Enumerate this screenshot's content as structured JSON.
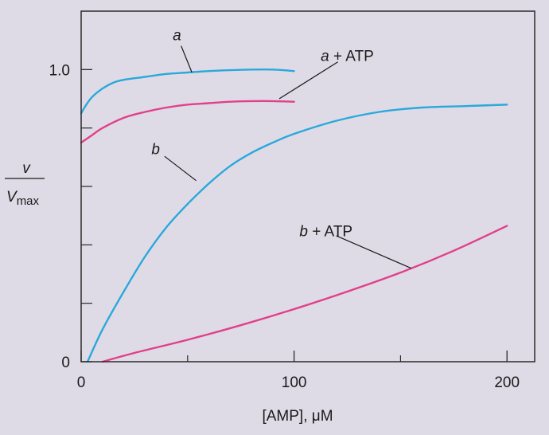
{
  "chart_data": {
    "type": "line",
    "title": "",
    "xlabel": "[AMP], μM",
    "ylabel": {
      "numerator": "v",
      "denominator": "V",
      "denominator_sub": "max"
    },
    "xlim": [
      0,
      213
    ],
    "ylim": [
      0,
      1.2
    ],
    "x_ticks": [
      0,
      100,
      200
    ],
    "x_minor_ticks": [
      50,
      150
    ],
    "y_ticks": [
      0,
      1.0
    ],
    "y_tick_labels": [
      "0",
      "1.0"
    ],
    "y_minor_ticks": [
      0.2,
      0.4,
      0.6,
      0.8
    ],
    "grid": false,
    "colors": {
      "blue": "#2aa8dc",
      "pink": "#e0408a",
      "plot_bg": "#dfdbe6",
      "frame": "#2a2a2a"
    },
    "series": [
      {
        "name": "a",
        "color": "#2aa8dc",
        "x": [
          0,
          2,
          5,
          10,
          15,
          20,
          30,
          40,
          50,
          60,
          70,
          80,
          90,
          100
        ],
        "y": [
          0.85,
          0.875,
          0.905,
          0.935,
          0.955,
          0.965,
          0.975,
          0.985,
          0.99,
          0.995,
          0.998,
          1.0,
          1.0,
          0.995
        ]
      },
      {
        "name": "a + ATP",
        "color": "#e0408a",
        "x": [
          0,
          5,
          10,
          20,
          30,
          40,
          50,
          60,
          70,
          80,
          90,
          100
        ],
        "y": [
          0.75,
          0.775,
          0.8,
          0.835,
          0.855,
          0.87,
          0.88,
          0.885,
          0.89,
          0.892,
          0.892,
          0.89
        ]
      },
      {
        "name": "b",
        "color": "#2aa8dc",
        "x": [
          3,
          10,
          20,
          30,
          40,
          50,
          60,
          70,
          80,
          90,
          100,
          120,
          140,
          160,
          180,
          200
        ],
        "y": [
          0.0,
          0.11,
          0.24,
          0.36,
          0.46,
          0.54,
          0.61,
          0.67,
          0.715,
          0.75,
          0.78,
          0.825,
          0.855,
          0.87,
          0.875,
          0.88
        ]
      },
      {
        "name": "b + ATP",
        "color": "#e0408a",
        "x": [
          10,
          25,
          50,
          75,
          100,
          125,
          150,
          175,
          200
        ],
        "y": [
          0.0,
          0.03,
          0.075,
          0.125,
          0.18,
          0.24,
          0.305,
          0.38,
          0.465
        ]
      }
    ],
    "annotations": [
      {
        "text": "a",
        "label_x": 45,
        "label_y": 1.1,
        "point_x": 52,
        "point_y": 0.99,
        "italic_part": "a",
        "rest": ""
      },
      {
        "text": "a + ATP",
        "label_x": 125,
        "label_y": 1.03,
        "point_x": 93,
        "point_y": 0.9,
        "italic_part": "a",
        "rest": " + ATP"
      },
      {
        "text": "b",
        "label_x": 35,
        "label_y": 0.71,
        "point_x": 54,
        "point_y": 0.62,
        "italic_part": "b",
        "rest": ""
      },
      {
        "text": "b + ATP",
        "label_x": 115,
        "label_y": 0.43,
        "point_x": 155,
        "point_y": 0.32,
        "italic_part": "b",
        "rest": " + ATP"
      }
    ]
  }
}
